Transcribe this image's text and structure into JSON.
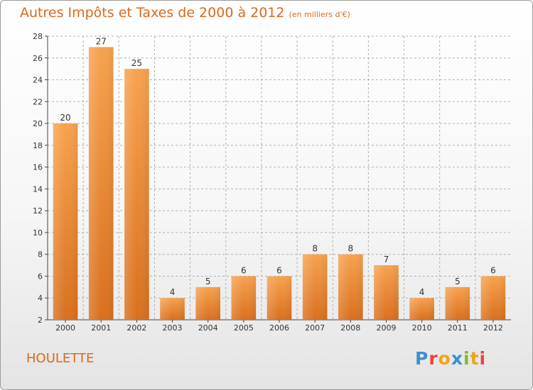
{
  "header": {
    "title": "Autres Impôts et Taxes de 2000 à 2012",
    "subtitle": "(en milliers d'€)"
  },
  "footer": {
    "place": "HOULETTE",
    "logo": [
      "P",
      "r",
      "o",
      "x",
      "i",
      "t",
      "i"
    ]
  },
  "colors": {
    "title": "#d9691e",
    "bar_top": "#f7a24e",
    "bar_bottom": "#d9701e",
    "grid": "#b0b0b0"
  },
  "chart_data": {
    "type": "bar",
    "categories": [
      "2000",
      "2001",
      "2002",
      "2003",
      "2004",
      "2005",
      "2006",
      "2007",
      "2008",
      "2009",
      "2010",
      "2011",
      "2012"
    ],
    "values": [
      20,
      27,
      25,
      4,
      5,
      6,
      6,
      8,
      8,
      7,
      4,
      5,
      6
    ],
    "value_labels": [
      "20",
      "27",
      "25",
      "4",
      "5",
      "6",
      "6",
      "8",
      "8",
      "7",
      "4",
      "5",
      "6"
    ],
    "title": "Autres Impôts et Taxes de 2000 à 2012",
    "subtitle": "(en milliers d'€)",
    "ylim": [
      2,
      28
    ],
    "yticks": [
      2,
      4,
      6,
      8,
      10,
      12,
      14,
      16,
      18,
      20,
      22,
      24,
      26,
      28
    ],
    "grid": true,
    "legend": "none"
  }
}
